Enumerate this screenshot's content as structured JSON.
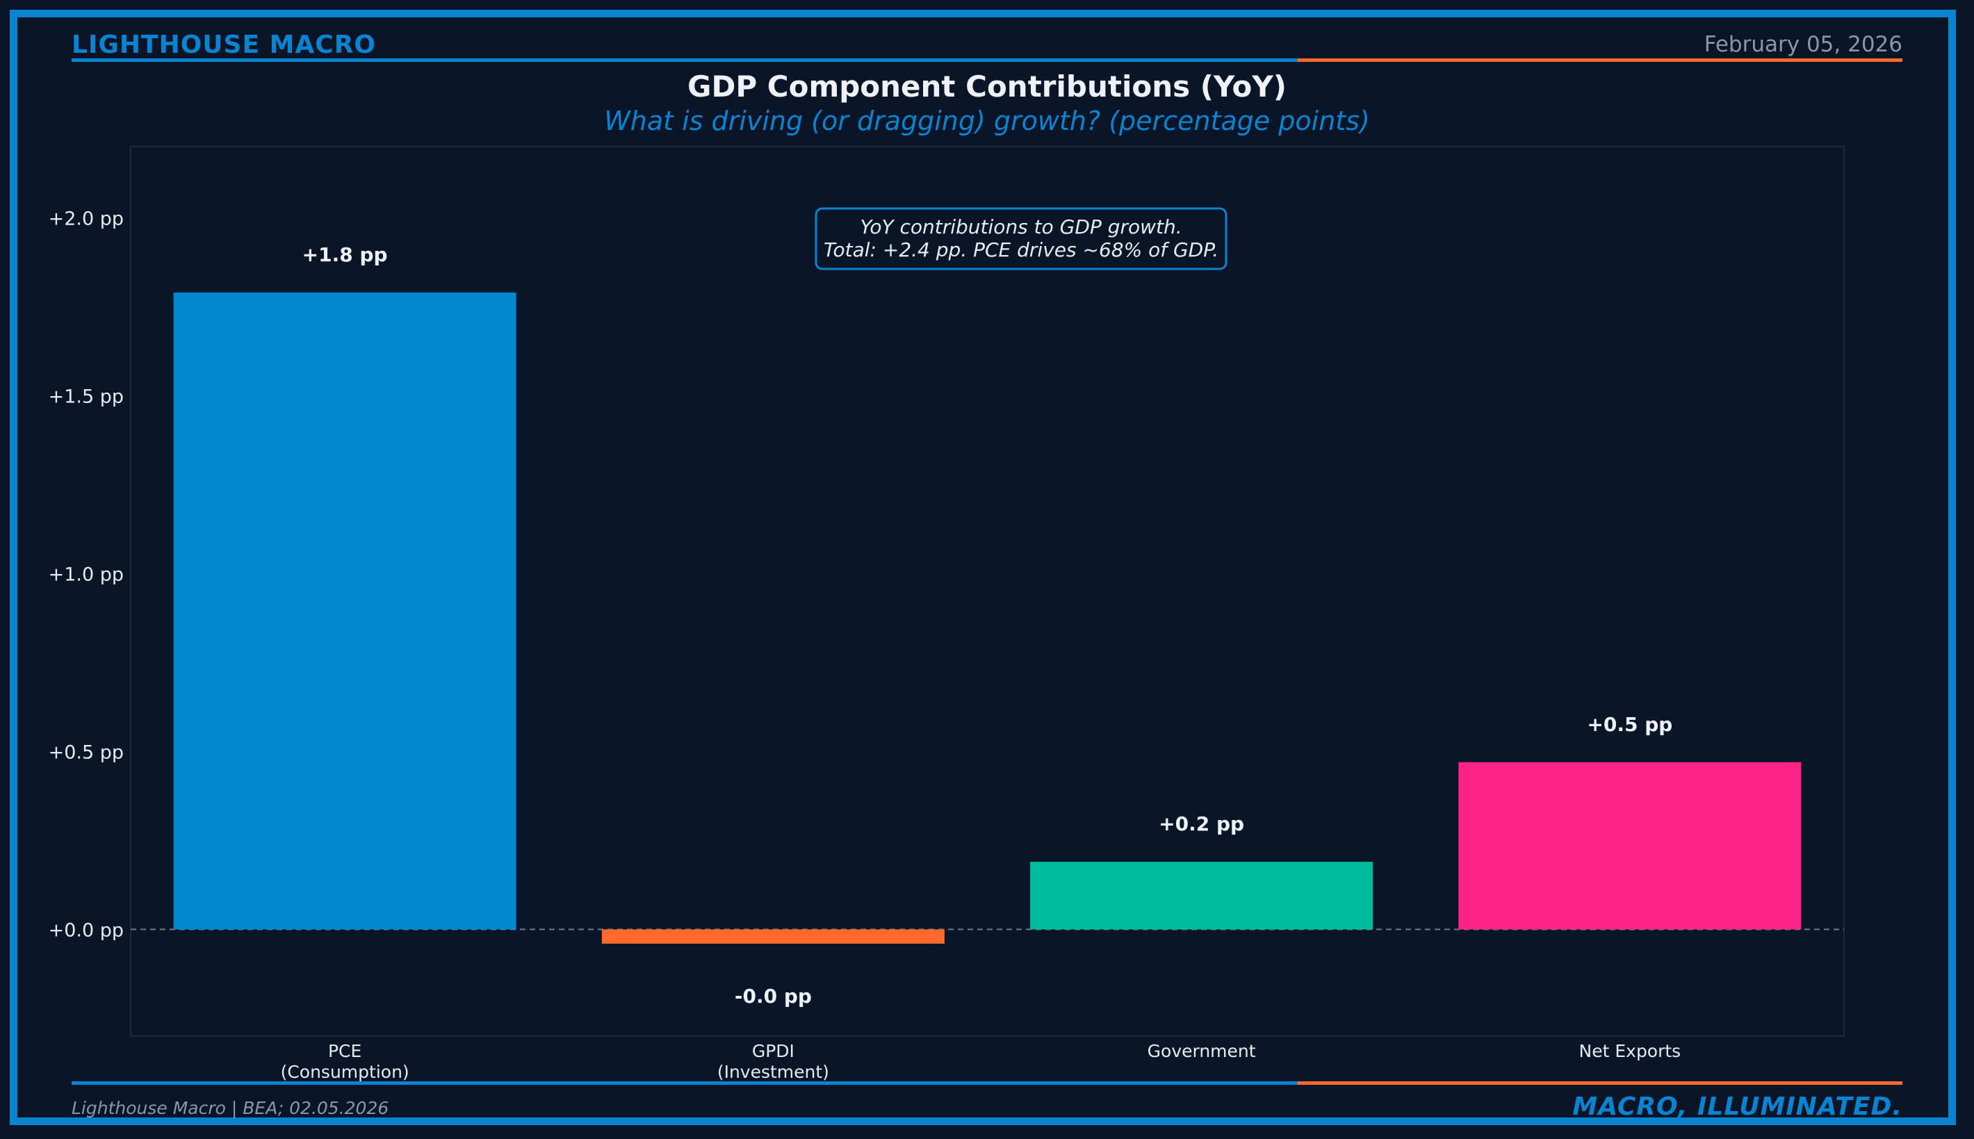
{
  "header": {
    "brand": "LIGHTHOUSE MACRO",
    "date": "February 05, 2026"
  },
  "title": "GDP Component Contributions (YoY)",
  "subtitle": "What is driving (or dragging) growth? (percentage points)",
  "annotation": {
    "line1": "YoY contributions to GDP growth.",
    "line2": "Total: +2.4 pp. PCE drives ~68% of GDP."
  },
  "footer": {
    "source": "Lighthouse Macro | BEA; 02.05.2026",
    "tagline": "MACRO, ILLUMINATED."
  },
  "colors": {
    "background": "#0a1628",
    "accent_blue": "#0a84d0",
    "accent_orange": "#ff6a2a"
  },
  "chart_data": {
    "type": "bar",
    "categories": [
      [
        "PCE",
        "(Consumption)"
      ],
      [
        "GPDI",
        "(Investment)"
      ],
      [
        "Government"
      ],
      [
        "Net Exports"
      ]
    ],
    "values": [
      1.79,
      -0.04,
      0.19,
      0.47
    ],
    "data_labels": [
      "+1.8 pp",
      "-0.0 pp",
      "+0.2 pp",
      "+0.5 pp"
    ],
    "colors": [
      "#0088d1",
      "#ff6a2a",
      "#00bb9e",
      "#ff2388"
    ],
    "yticks": [
      0.0,
      0.5,
      1.0,
      1.5,
      2.0
    ],
    "ytick_labels": [
      "+0.0 pp",
      "+0.5 pp",
      "+1.0 pp",
      "+1.5 pp",
      "+2.0 pp"
    ],
    "ylim": [
      -0.3,
      2.2
    ],
    "zero_line": "dashed",
    "grid": false,
    "legend": "none"
  }
}
